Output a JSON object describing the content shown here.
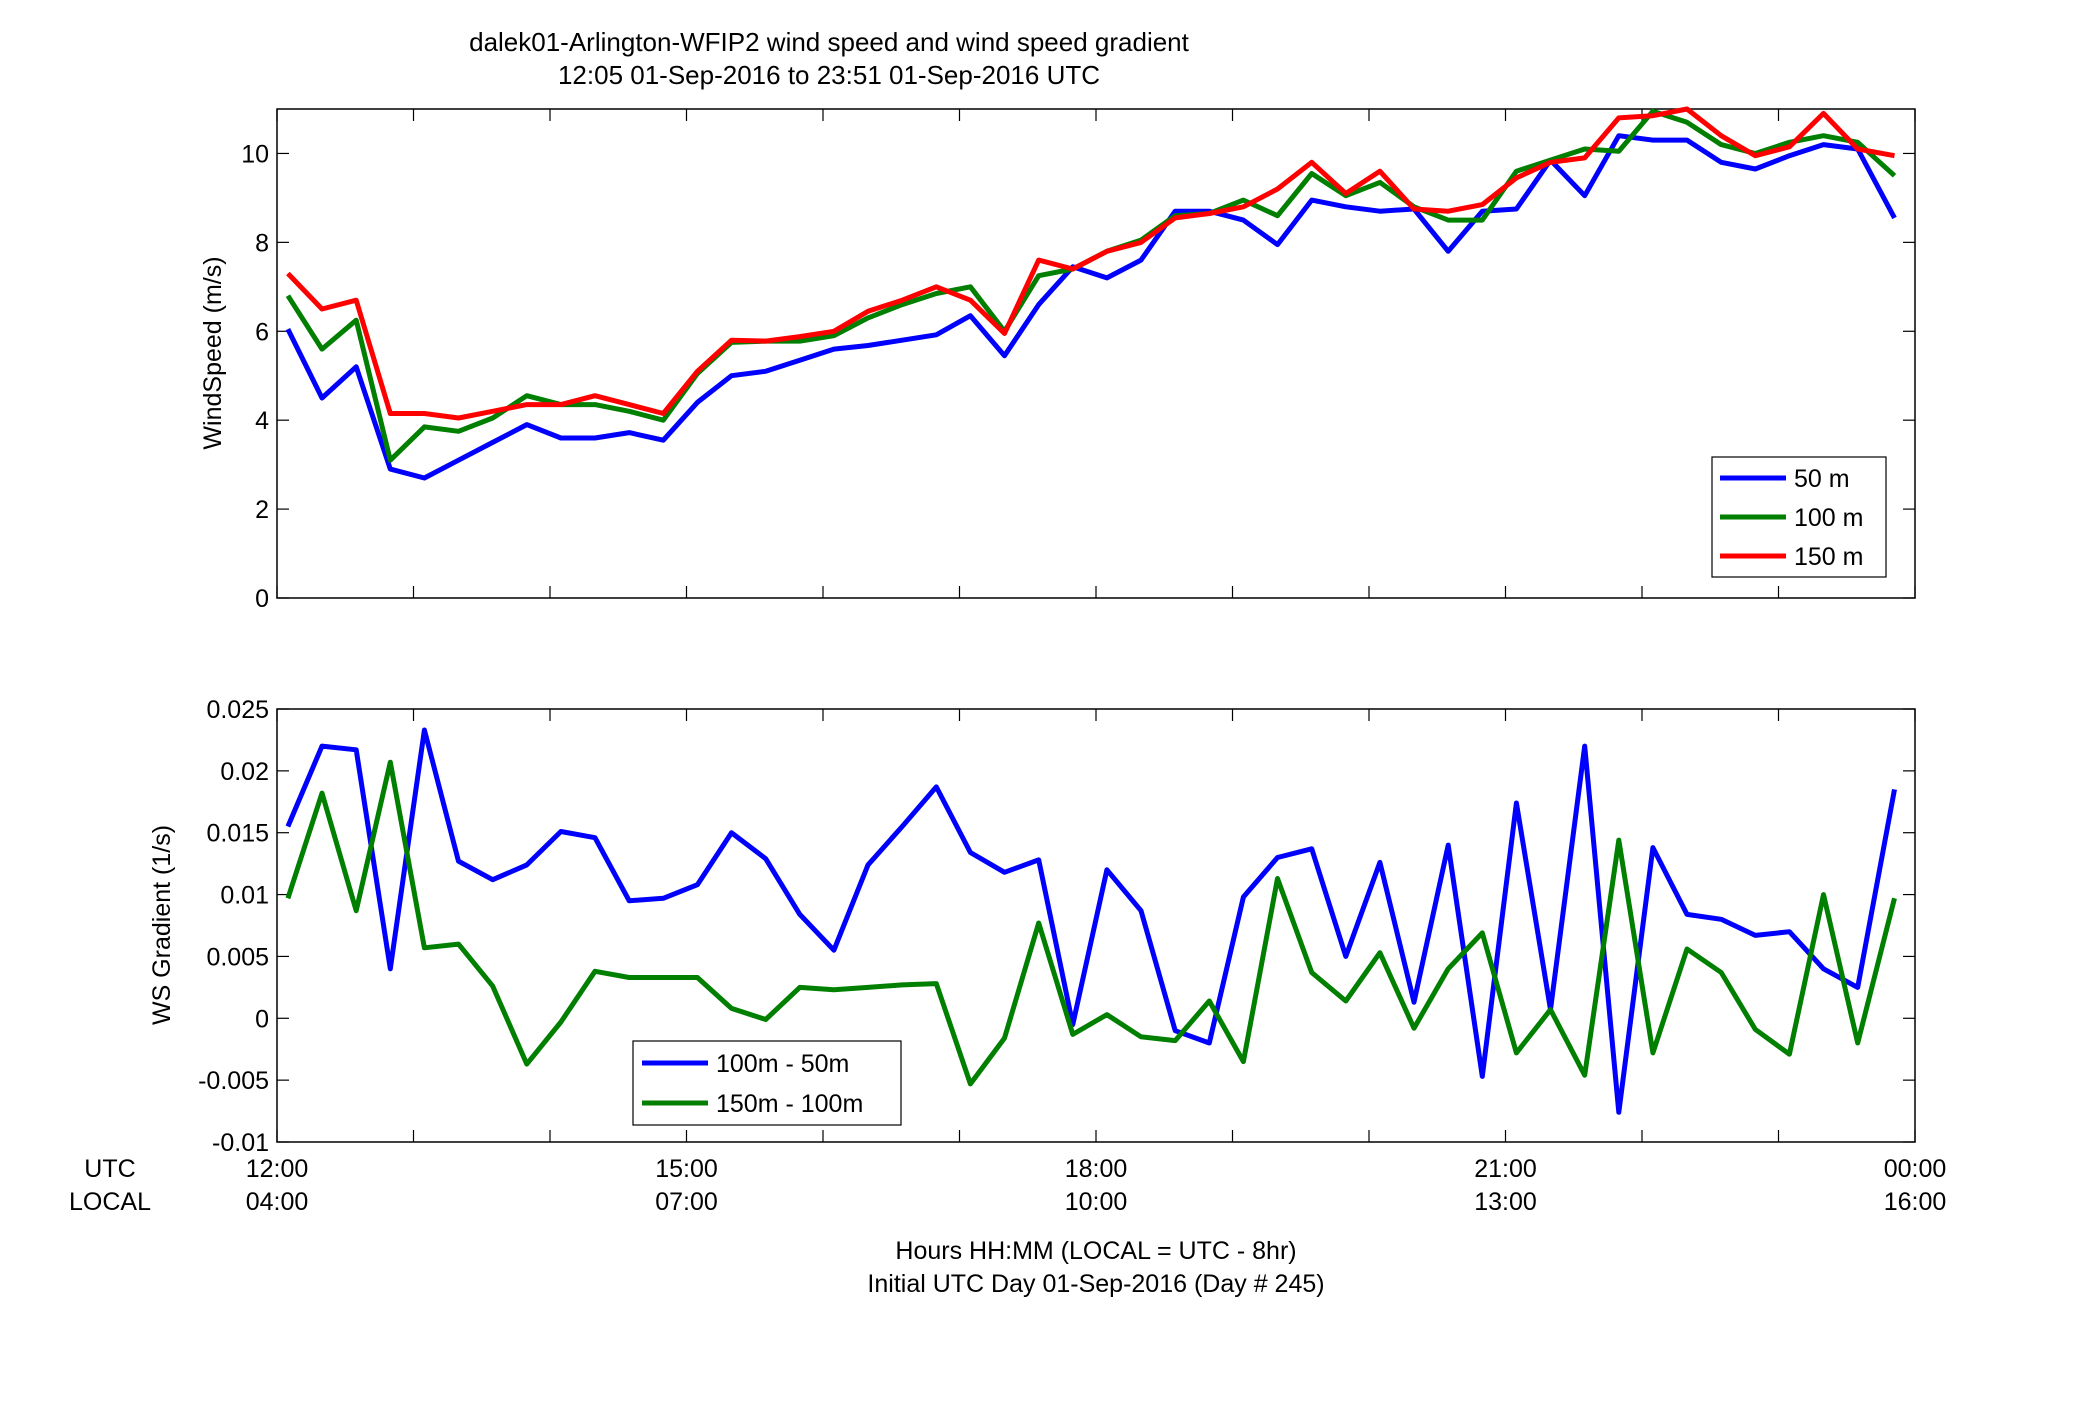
{
  "figure": {
    "title_line1": "dalek01-Arlington-WFIP2  wind speed and wind speed gradient",
    "title_line2": "12:05 01-Sep-2016 to 23:51 01-Sep-2016  UTC",
    "xlabel_line1": "Hours HH:MM  (LOCAL = UTC - 8hr)",
    "xlabel_line2": "Initial UTC Day 01-Sep-2016 (Day # 245)",
    "utc_label": "UTC",
    "local_label": "LOCAL",
    "x_ticks": [
      {
        "hour": 12,
        "utc": "12:00",
        "local": "04:00"
      },
      {
        "hour": 15,
        "utc": "15:00",
        "local": "07:00"
      },
      {
        "hour": 18,
        "utc": "18:00",
        "local": "10:00"
      },
      {
        "hour": 21,
        "utc": "21:00",
        "local": "13:00"
      },
      {
        "hour": 24,
        "utc": "00:00",
        "local": "16:00"
      }
    ]
  },
  "chart_data": [
    {
      "type": "line",
      "ylabel": "WindSpeed (m/s)",
      "xlim": [
        12,
        24
      ],
      "ylim": [
        0,
        11
      ],
      "yticks": [
        0,
        2,
        4,
        6,
        8,
        10
      ],
      "ytick_labels": [
        "0",
        "2",
        "4",
        "6",
        "8",
        "10"
      ],
      "legend_position": "bottom-right",
      "x": [
        12.08,
        12.33,
        12.58,
        12.83,
        13.08,
        13.33,
        13.58,
        13.83,
        14.08,
        14.33,
        14.58,
        14.83,
        15.08,
        15.33,
        15.58,
        15.83,
        16.08,
        16.33,
        16.58,
        16.83,
        17.08,
        17.33,
        17.58,
        17.83,
        18.08,
        18.33,
        18.58,
        18.83,
        19.08,
        19.33,
        19.58,
        19.83,
        20.08,
        20.33,
        20.58,
        20.83,
        21.08,
        21.33,
        21.58,
        21.83,
        22.08,
        22.33,
        22.58,
        22.83,
        23.08,
        23.33,
        23.58,
        23.85
      ],
      "series": [
        {
          "name": "50 m",
          "color": "#0000ff",
          "values": [
            6.05,
            4.5,
            5.2,
            2.9,
            2.7,
            3.1,
            3.5,
            3.9,
            3.6,
            3.6,
            3.72,
            3.55,
            4.4,
            5.0,
            5.1,
            5.35,
            5.6,
            5.68,
            5.8,
            5.92,
            6.35,
            5.45,
            6.6,
            7.45,
            7.2,
            7.6,
            8.7,
            8.7,
            8.5,
            7.95,
            8.95,
            8.8,
            8.7,
            8.75,
            7.8,
            8.7,
            8.75,
            9.85,
            9.05,
            10.4,
            10.3,
            10.3,
            9.8,
            9.65,
            9.95,
            10.2,
            10.1,
            8.55
          ]
        },
        {
          "name": "100 m",
          "color": "#007f00",
          "values": [
            6.8,
            5.6,
            6.25,
            3.1,
            3.85,
            3.75,
            4.05,
            4.55,
            4.35,
            4.35,
            4.2,
            4.0,
            5.05,
            5.75,
            5.78,
            5.78,
            5.9,
            6.3,
            6.6,
            6.85,
            7.0,
            6.0,
            7.25,
            7.4,
            7.8,
            8.05,
            8.6,
            8.65,
            8.95,
            8.6,
            9.55,
            9.05,
            9.35,
            8.8,
            8.5,
            8.5,
            9.6,
            9.85,
            10.1,
            10.05,
            10.95,
            10.7,
            10.2,
            10.0,
            10.25,
            10.4,
            10.25,
            9.5
          ]
        },
        {
          "name": "150 m",
          "color": "#ff0000",
          "values": [
            7.3,
            6.5,
            6.7,
            4.15,
            4.15,
            4.05,
            4.2,
            4.35,
            4.35,
            4.55,
            4.35,
            4.15,
            5.1,
            5.8,
            5.78,
            5.88,
            6.0,
            6.45,
            6.7,
            7.0,
            6.7,
            5.95,
            7.6,
            7.4,
            7.8,
            8.0,
            8.55,
            8.65,
            8.8,
            9.2,
            9.8,
            9.1,
            9.6,
            8.75,
            8.7,
            8.85,
            9.45,
            9.8,
            9.9,
            10.8,
            10.85,
            11.0,
            10.4,
            9.95,
            10.15,
            10.9,
            10.1,
            9.95
          ]
        }
      ]
    },
    {
      "type": "line",
      "ylabel": "WS Gradient (1/s)",
      "xlim": [
        12,
        24
      ],
      "ylim": [
        -0.01,
        0.025
      ],
      "yticks": [
        -0.01,
        -0.005,
        0,
        0.005,
        0.01,
        0.015,
        0.02,
        0.025
      ],
      "ytick_labels": [
        "-0.01",
        "-0.005",
        "0",
        "0.005",
        "0.01",
        "0.015",
        "0.02",
        "0.025"
      ],
      "legend_position": "bottom-left",
      "x": [
        12.08,
        12.33,
        12.58,
        12.83,
        13.08,
        13.33,
        13.58,
        13.83,
        14.08,
        14.33,
        14.58,
        14.83,
        15.08,
        15.33,
        15.58,
        15.83,
        16.08,
        16.33,
        16.58,
        16.83,
        17.08,
        17.33,
        17.58,
        17.83,
        18.08,
        18.33,
        18.58,
        18.83,
        19.08,
        19.33,
        19.58,
        19.83,
        20.08,
        20.33,
        20.58,
        20.83,
        21.08,
        21.33,
        21.58,
        21.83,
        22.08,
        22.33,
        22.58,
        22.83,
        23.08,
        23.33,
        23.58,
        23.85
      ],
      "series": [
        {
          "name": "100m - 50m",
          "color": "#0000ff",
          "values": [
            0.0155,
            0.022,
            0.0217,
            0.004,
            0.0233,
            0.0127,
            0.0112,
            0.0124,
            0.0151,
            0.0146,
            0.0095,
            0.0097,
            0.0108,
            0.015,
            0.0129,
            0.0084,
            0.0055,
            0.0124,
            0.0155,
            0.0187,
            0.0134,
            0.0118,
            0.0128,
            -0.0005,
            0.012,
            0.0087,
            -0.001,
            -0.002,
            0.0098,
            0.013,
            0.0137,
            0.005,
            0.0126,
            0.0013,
            0.014,
            -0.0047,
            0.0174,
            0.0007,
            0.022,
            -0.0076,
            0.0138,
            0.0084,
            0.008,
            0.0067,
            0.007,
            0.004,
            0.0025,
            0.0185
          ]
        },
        {
          "name": "150m - 100m",
          "color": "#007f00",
          "values": [
            0.0097,
            0.0182,
            0.0087,
            0.0207,
            0.0057,
            0.006,
            0.0026,
            -0.0037,
            -0.0003,
            0.0038,
            0.0033,
            0.0033,
            0.0033,
            0.0008,
            -0.0001,
            0.0025,
            0.0023,
            0.0025,
            0.0027,
            0.0028,
            -0.0053,
            -0.0016,
            0.0077,
            -0.0013,
            0.0003,
            -0.0015,
            -0.0018,
            0.0014,
            -0.0035,
            0.0113,
            0.0037,
            0.0014,
            0.0053,
            -0.0008,
            0.004,
            0.0069,
            -0.0028,
            0.0007,
            -0.0046,
            0.0144,
            -0.0028,
            0.0056,
            0.0037,
            -0.0009,
            -0.0029,
            0.01,
            -0.002,
            0.0097
          ]
        }
      ]
    }
  ]
}
